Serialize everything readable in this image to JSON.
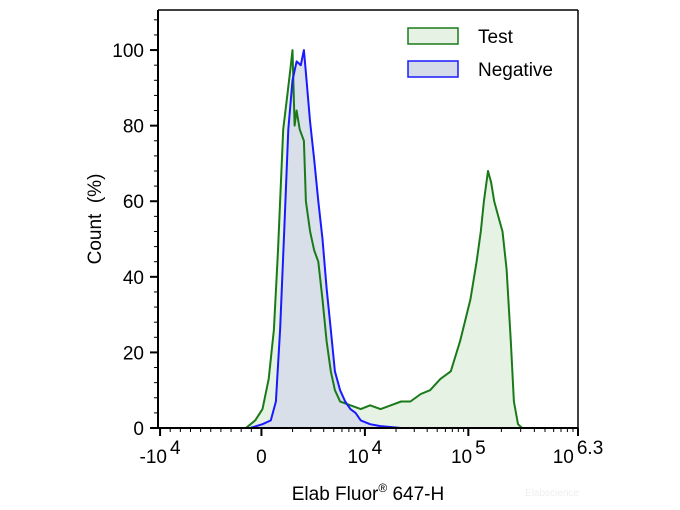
{
  "chart_data": {
    "type": "area",
    "title": "",
    "xlabel": "Elab Fluor",
    "xlabel_sup": "®",
    "xlabel_suffix": " 647-H",
    "ylabel": "Count  (%)",
    "x_scale": "biexponential (display units: 0 = 0, 1 = 10^4, 2 = 10^5)",
    "xlim": [
      -1,
      3.06
    ],
    "ylim": [
      0,
      110.6
    ],
    "x_ticks": [
      {
        "pos": -0.98,
        "base": "-10",
        "exp": "4"
      },
      {
        "pos": 0,
        "base": "0",
        "exp": ""
      },
      {
        "pos": 1,
        "base": "10",
        "exp": "4"
      },
      {
        "pos": 2,
        "base": "10",
        "exp": "5"
      },
      {
        "pos": 3.06,
        "base": "10",
        "exp": "6.3"
      }
    ],
    "y_ticks": [
      0,
      20,
      40,
      60,
      80,
      100
    ],
    "legend_position": "top-right",
    "series": [
      {
        "name": "Test",
        "color": "#1a7a1a",
        "fill": "#e6f2e4",
        "points": [
          [
            -0.15,
            0
          ],
          [
            -0.06,
            2
          ],
          [
            0.01,
            5
          ],
          [
            0.07,
            13
          ],
          [
            0.12,
            26
          ],
          [
            0.16,
            47
          ],
          [
            0.21,
            79
          ],
          [
            0.25,
            88
          ],
          [
            0.28,
            95
          ],
          [
            0.3,
            100
          ],
          [
            0.32,
            80
          ],
          [
            0.34,
            84
          ],
          [
            0.37,
            79
          ],
          [
            0.41,
            76
          ],
          [
            0.43,
            60
          ],
          [
            0.47,
            52
          ],
          [
            0.51,
            47
          ],
          [
            0.55,
            44
          ],
          [
            0.59,
            34
          ],
          [
            0.63,
            23
          ],
          [
            0.67,
            15
          ],
          [
            0.71,
            10
          ],
          [
            0.76,
            7
          ],
          [
            0.86,
            6
          ],
          [
            0.96,
            5
          ],
          [
            1.05,
            6
          ],
          [
            1.15,
            5
          ],
          [
            1.25,
            6
          ],
          [
            1.35,
            7
          ],
          [
            1.44,
            7
          ],
          [
            1.54,
            9
          ],
          [
            1.63,
            10
          ],
          [
            1.73,
            13
          ],
          [
            1.83,
            15
          ],
          [
            1.92,
            23
          ],
          [
            2.02,
            34
          ],
          [
            2.08,
            44
          ],
          [
            2.12,
            52
          ],
          [
            2.15,
            60
          ],
          [
            2.19,
            68
          ],
          [
            2.22,
            65
          ],
          [
            2.25,
            60
          ],
          [
            2.29,
            56
          ],
          [
            2.33,
            52
          ],
          [
            2.37,
            42
          ],
          [
            2.41,
            23
          ],
          [
            2.44,
            7
          ],
          [
            2.48,
            1
          ],
          [
            2.52,
            0
          ]
        ]
      },
      {
        "name": "Negative",
        "color": "#1a1aff",
        "fill": "#d5dce9",
        "points": [
          [
            -0.11,
            0
          ],
          [
            0.01,
            1
          ],
          [
            0.09,
            2
          ],
          [
            0.14,
            7
          ],
          [
            0.18,
            26
          ],
          [
            0.22,
            52
          ],
          [
            0.26,
            79
          ],
          [
            0.3,
            92
          ],
          [
            0.34,
            97
          ],
          [
            0.38,
            96
          ],
          [
            0.41,
            100
          ],
          [
            0.43,
            94
          ],
          [
            0.47,
            81
          ],
          [
            0.51,
            71
          ],
          [
            0.55,
            60
          ],
          [
            0.59,
            50
          ],
          [
            0.63,
            37
          ],
          [
            0.67,
            26
          ],
          [
            0.71,
            15
          ],
          [
            0.76,
            10
          ],
          [
            0.81,
            7
          ],
          [
            0.86,
            5
          ],
          [
            0.91,
            4
          ],
          [
            0.96,
            2
          ],
          [
            1.05,
            1
          ],
          [
            1.15,
            0.5
          ],
          [
            1.35,
            0
          ]
        ]
      }
    ],
    "watermark": "Elabscience"
  }
}
